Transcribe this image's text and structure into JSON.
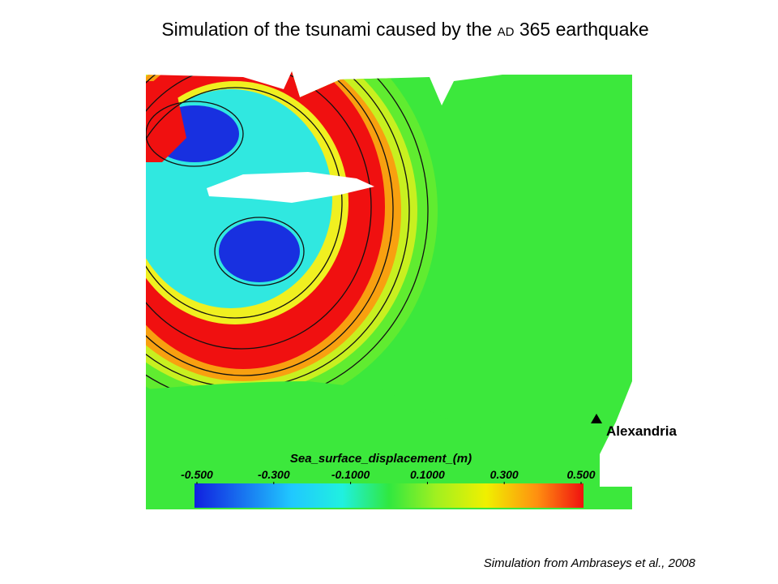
{
  "header": {
    "title_start": "Simulation of the tsunami caused by the",
    "era": "AD",
    "title_end": "365 earthquake"
  },
  "map": {
    "place_label": "Alexandria"
  },
  "colorbar": {
    "title": "Sea_surface_displacement_(m)",
    "ticks": [
      {
        "value": -0.5,
        "label": "-0.500"
      },
      {
        "value": -0.3,
        "label": "-0.300"
      },
      {
        "value": -0.1,
        "label": "-0.1000"
      },
      {
        "value": 0.1,
        "label": "0.1000"
      },
      {
        "value": 0.3,
        "label": "0.300"
      },
      {
        "value": 0.5,
        "label": "0.500"
      }
    ]
  },
  "credit": "Simulation from Ambraseys et al., 2008"
}
